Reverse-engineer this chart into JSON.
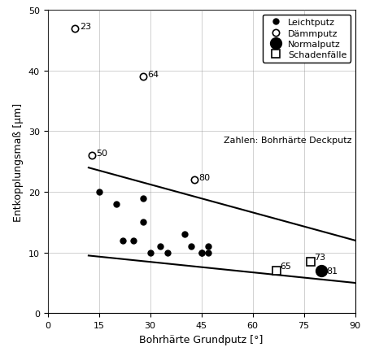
{
  "title": "",
  "xlabel": "Bohrhärte Grundputz [°]",
  "ylabel": "Entkopplungsmaß [µm]",
  "xlim": [
    0,
    90
  ],
  "ylim": [
    0,
    50
  ],
  "xticks": [
    0,
    15,
    30,
    45,
    60,
    75,
    90
  ],
  "yticks": [
    0,
    10,
    20,
    30,
    40,
    50
  ],
  "leichtputz": {
    "x": [
      15,
      20,
      22,
      25,
      28,
      28,
      30,
      33,
      35,
      40,
      42,
      45,
      45,
      47,
      47
    ],
    "y": [
      20,
      18,
      12,
      12,
      15,
      19,
      10,
      11,
      10,
      13,
      11,
      10,
      10,
      11,
      10
    ]
  },
  "daemmputz": {
    "x": [
      8,
      13,
      28,
      43
    ],
    "y": [
      47,
      26,
      39,
      22
    ],
    "labels": [
      "23",
      "50",
      "64",
      "80"
    ]
  },
  "normalputz": {
    "x": [
      80
    ],
    "y": [
      7
    ],
    "labels": [
      "81"
    ]
  },
  "schadenfaelle": {
    "x": [
      67,
      77
    ],
    "y": [
      7,
      8.5
    ],
    "labels": [
      "65",
      "73"
    ]
  },
  "trend_upper": {
    "x": [
      12,
      90
    ],
    "y": [
      24,
      12
    ]
  },
  "trend_lower": {
    "x": [
      12,
      90
    ],
    "y": [
      9.5,
      5
    ]
  },
  "annotation_note": "Zahlen: Bohrhärte Deckputz",
  "figsize": [
    4.5,
    4.39
  ],
  "dpi": 100
}
